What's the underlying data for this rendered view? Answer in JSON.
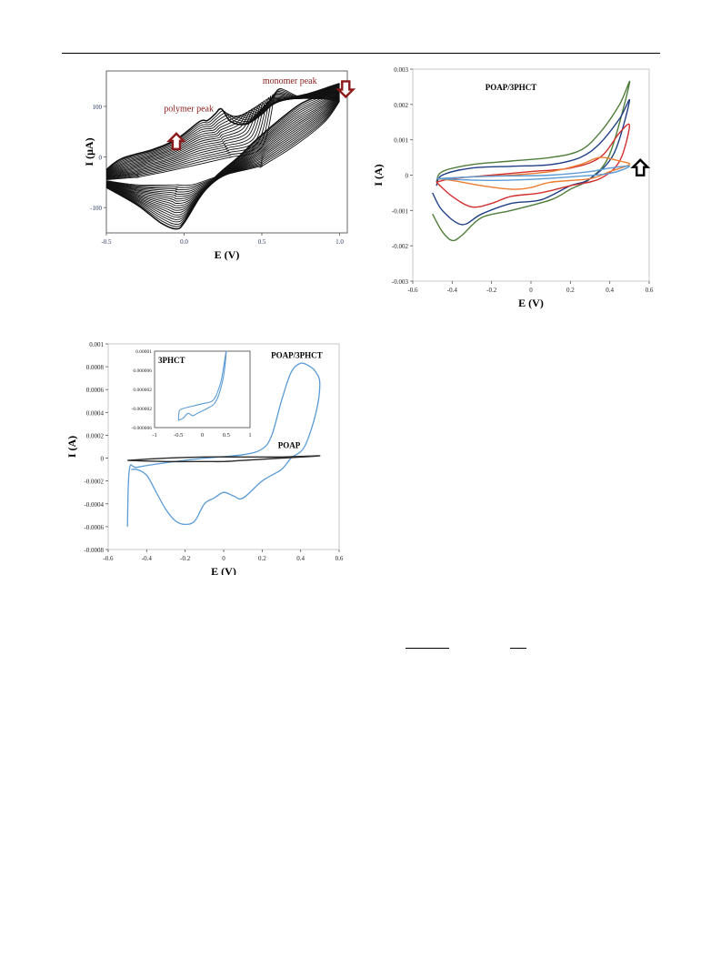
{
  "charts": [
    {
      "id": "fig1",
      "type": "line",
      "xlabel": "E (V)",
      "ylabel": "I (μA)",
      "xlim": [
        -0.5,
        1.05
      ],
      "ylim": [
        -150,
        170
      ],
      "xticks": [
        -0.5,
        0.0,
        0.5,
        1.0
      ],
      "xtick_labels": [
        "-0.5",
        "0.0",
        "0.5",
        "1.0"
      ],
      "yticks": [
        -100,
        0,
        100
      ],
      "ytick_labels": [
        "-100",
        "0",
        "100"
      ],
      "annotations": [
        {
          "text": "monomer peak",
          "x": 0.68,
          "y": 145,
          "color": "#8b1a1a"
        },
        {
          "text": "polymer peak",
          "x": 0.03,
          "y": 90,
          "color": "#8b1a1a"
        }
      ],
      "arrows": [
        {
          "direction": "up",
          "x": -0.05,
          "y": 30,
          "color": "#8b1a1a"
        },
        {
          "direction": "down",
          "x": 1.04,
          "y": 135,
          "color": "#8b1a1a"
        }
      ],
      "series_count": 20,
      "first_cycle": {
        "forward": [
          [
            -0.5,
            -45
          ],
          [
            -0.3,
            -40
          ],
          [
            -0.1,
            -28
          ],
          [
            0.1,
            -14
          ],
          [
            0.3,
            0
          ],
          [
            0.5,
            20
          ],
          [
            0.58,
            120
          ],
          [
            0.62,
            135
          ],
          [
            0.75,
            118
          ],
          [
            0.9,
            115
          ],
          [
            1.0,
            110
          ]
        ],
        "reverse": [
          [
            1.0,
            110
          ],
          [
            0.9,
            68
          ],
          [
            0.7,
            20
          ],
          [
            0.5,
            -18
          ],
          [
            0.4,
            -25
          ],
          [
            0.3,
            -32
          ],
          [
            0.2,
            -40
          ],
          [
            0.05,
            -55
          ],
          [
            -0.05,
            -55
          ],
          [
            -0.3,
            -55
          ],
          [
            -0.5,
            -47
          ]
        ]
      },
      "last_cycle": {
        "forward": [
          [
            -0.5,
            -25
          ],
          [
            -0.4,
            -3
          ],
          [
            -0.2,
            15
          ],
          [
            -0.05,
            35
          ],
          [
            0.1,
            70
          ],
          [
            0.15,
            72
          ],
          [
            0.2,
            85
          ],
          [
            0.24,
            95
          ],
          [
            0.3,
            70
          ],
          [
            0.4,
            65
          ],
          [
            0.5,
            85
          ],
          [
            0.6,
            110
          ],
          [
            0.8,
            125
          ],
          [
            0.95,
            140
          ],
          [
            1.0,
            145
          ]
        ],
        "reverse": [
          [
            1.0,
            145
          ],
          [
            0.9,
            125
          ],
          [
            0.75,
            105
          ],
          [
            0.6,
            70
          ],
          [
            0.45,
            30
          ],
          [
            0.35,
            0
          ],
          [
            0.2,
            -40
          ],
          [
            0.1,
            -80
          ],
          [
            0.0,
            -130
          ],
          [
            -0.05,
            -142
          ],
          [
            -0.15,
            -130
          ],
          [
            -0.3,
            -95
          ],
          [
            -0.5,
            -60
          ]
        ]
      }
    },
    {
      "id": "fig2",
      "type": "line",
      "title": "POAP/3PHCT",
      "xlabel": "E (V)",
      "ylabel": "I (A)",
      "xlim": [
        -0.6,
        0.6
      ],
      "ylim": [
        -0.003,
        0.003
      ],
      "xticks": [
        -0.6,
        -0.4,
        -0.2,
        0,
        0.2,
        0.4,
        0.6
      ],
      "xtick_labels": [
        "-0.6",
        "-0.4",
        "-0.2",
        "0",
        "0.2",
        "0.4",
        "0.6"
      ],
      "yticks": [
        -0.003,
        -0.002,
        -0.001,
        0,
        0.001,
        0.002,
        0.003
      ],
      "ytick_labels": [
        "-0.003",
        "-0.002",
        "-0.001",
        "0",
        "0.001",
        "0.002",
        "0.003"
      ],
      "arrows": [
        {
          "direction": "up",
          "x": 0.555,
          "y": 0.0002,
          "color": "#000000"
        }
      ],
      "series": [
        {
          "color": "#4e7d3a",
          "forward": [
            [
              -0.48,
              -0.0002
            ],
            [
              -0.45,
              0.0001
            ],
            [
              -0.3,
              0.0003
            ],
            [
              -0.1,
              0.0004
            ],
            [
              0.1,
              0.0005
            ],
            [
              0.25,
              0.0007
            ],
            [
              0.35,
              0.0012
            ],
            [
              0.45,
              0.002
            ],
            [
              0.5,
              0.0026
            ]
          ],
          "reverse": [
            [
              0.5,
              0.0026
            ],
            [
              0.4,
              0.0006
            ],
            [
              0.3,
              -0.0001
            ],
            [
              0.2,
              -0.0004
            ],
            [
              0.1,
              -0.0007
            ],
            [
              -0.1,
              -0.001
            ],
            [
              -0.25,
              -0.0012
            ],
            [
              -0.35,
              -0.0017
            ],
            [
              -0.4,
              -0.00185
            ],
            [
              -0.45,
              -0.0016
            ],
            [
              -0.5,
              -0.0011
            ]
          ]
        },
        {
          "color": "#1f3f86",
          "forward": [
            [
              -0.48,
              -0.0003
            ],
            [
              -0.45,
              0.0
            ],
            [
              -0.3,
              0.0002
            ],
            [
              -0.1,
              0.00025
            ],
            [
              0.1,
              0.0003
            ],
            [
              0.25,
              0.0005
            ],
            [
              0.35,
              0.0009
            ],
            [
              0.45,
              0.0016
            ],
            [
              0.5,
              0.0021
            ]
          ],
          "reverse": [
            [
              0.5,
              0.0021
            ],
            [
              0.42,
              0.0006
            ],
            [
              0.3,
              -0.0001
            ],
            [
              0.2,
              -0.0003
            ],
            [
              0.05,
              -0.0007
            ],
            [
              -0.1,
              -0.0008
            ],
            [
              -0.25,
              -0.0011
            ],
            [
              -0.35,
              -0.0014
            ],
            [
              -0.45,
              -0.001
            ],
            [
              -0.5,
              -0.0005
            ]
          ]
        },
        {
          "color": "#d32f2f",
          "forward": [
            [
              -0.48,
              -0.0002
            ],
            [
              -0.4,
              -0.0001
            ],
            [
              -0.2,
              0.0
            ],
            [
              0.0,
              0.0001
            ],
            [
              0.2,
              0.0002
            ],
            [
              0.35,
              0.0005
            ],
            [
              0.45,
              0.0012
            ],
            [
              0.5,
              0.0014
            ]
          ],
          "reverse": [
            [
              0.5,
              0.0014
            ],
            [
              0.45,
              0.0004
            ],
            [
              0.35,
              -0.0001
            ],
            [
              0.2,
              -0.0003
            ],
            [
              0.05,
              -0.0005
            ],
            [
              -0.1,
              -0.0006
            ],
            [
              -0.2,
              -0.0008
            ],
            [
              -0.3,
              -0.0009
            ],
            [
              -0.4,
              -0.0006
            ],
            [
              -0.48,
              -0.0002
            ]
          ]
        },
        {
          "color": "#ed7d31",
          "forward": [
            [
              -0.48,
              -0.0001
            ],
            [
              -0.3,
              -5e-05
            ],
            [
              -0.1,
              0.0
            ],
            [
              0.1,
              0.0001
            ],
            [
              0.25,
              0.0003
            ],
            [
              0.35,
              0.0005
            ],
            [
              0.45,
              0.0004
            ],
            [
              0.5,
              0.0003
            ]
          ],
          "reverse": [
            [
              0.5,
              0.0003
            ],
            [
              0.4,
              0.0001
            ],
            [
              0.3,
              -0.0001
            ],
            [
              0.1,
              -0.0002
            ],
            [
              0.0,
              -0.00035
            ],
            [
              -0.1,
              -0.0004
            ],
            [
              -0.25,
              -0.0003
            ],
            [
              -0.4,
              -0.00015
            ],
            [
              -0.48,
              -0.0001
            ]
          ]
        },
        {
          "color": "#5b9bd5",
          "forward": [
            [
              -0.48,
              -0.0001
            ],
            [
              -0.3,
              -5e-05
            ],
            [
              -0.1,
              -2e-05
            ],
            [
              0.1,
              0.0
            ],
            [
              0.3,
              0.0001
            ],
            [
              0.4,
              0.0002
            ],
            [
              0.5,
              0.00025
            ]
          ],
          "reverse": [
            [
              0.5,
              0.00025
            ],
            [
              0.4,
              5e-05
            ],
            [
              0.2,
              -5e-05
            ],
            [
              0.0,
              -0.00012
            ],
            [
              -0.2,
              -0.00015
            ],
            [
              -0.4,
              -0.00012
            ],
            [
              -0.48,
              -0.0001
            ]
          ]
        }
      ]
    },
    {
      "id": "fig3",
      "type": "line",
      "xlabel": "E (V)",
      "ylabel": "I (A)",
      "xlim": [
        -0.6,
        0.6
      ],
      "ylim": [
        -0.0008,
        0.001
      ],
      "xticks": [
        -0.6,
        -0.4,
        -0.2,
        0,
        0.2,
        0.4,
        0.6
      ],
      "xtick_labels": [
        "-0.6",
        "-0.4",
        "-0.2",
        "0",
        "0.2",
        "0.4",
        "0.6"
      ],
      "yticks": [
        -0.0008,
        -0.0006,
        -0.0004,
        -0.0002,
        0,
        0.0002,
        0.0004,
        0.0006,
        0.0008,
        0.001
      ],
      "ytick_labels": [
        "-0.0008",
        "-0.0006",
        "-0.0004",
        "-0.0002",
        "0",
        "0.0002",
        "0.0004",
        "0.0006",
        "0.0008",
        "0.001"
      ],
      "series": [
        {
          "name": "POAP/3PHCT",
          "color": "#5b9bd5",
          "forward": [
            [
              -0.5,
              -0.0006
            ],
            [
              -0.49,
              -0.0001
            ],
            [
              -0.45,
              -8e-05
            ],
            [
              -0.3,
              -4e-05
            ],
            [
              -0.1,
              0.0
            ],
            [
              0.1,
              3e-05
            ],
            [
              0.2,
              8e-05
            ],
            [
              0.25,
              0.0002
            ],
            [
              0.3,
              0.0005
            ],
            [
              0.35,
              0.00075
            ],
            [
              0.4,
              0.00083
            ],
            [
              0.45,
              0.0008
            ],
            [
              0.48,
              0.00075
            ],
            [
              0.5,
              0.00065
            ]
          ],
          "reverse": [
            [
              0.5,
              0.00065
            ],
            [
              0.48,
              0.0004
            ],
            [
              0.42,
              0.0001
            ],
            [
              0.35,
              0.0
            ],
            [
              0.3,
              -0.0001
            ],
            [
              0.2,
              -0.0002
            ],
            [
              0.1,
              -0.00035
            ],
            [
              0.05,
              -0.00033
            ],
            [
              0.0,
              -0.0003
            ],
            [
              -0.05,
              -0.00035
            ],
            [
              -0.1,
              -0.0004
            ],
            [
              -0.15,
              -0.00055
            ],
            [
              -0.2,
              -0.00058
            ],
            [
              -0.25,
              -0.00055
            ],
            [
              -0.3,
              -0.00045
            ],
            [
              -0.35,
              -0.0003
            ],
            [
              -0.4,
              -0.00015
            ],
            [
              -0.45,
              -0.0001
            ],
            [
              -0.48,
              -0.0001
            ]
          ]
        },
        {
          "name": "POAP",
          "color": "#2b2b2b",
          "forward": [
            [
              -0.5,
              -2e-05
            ],
            [
              -0.3,
              0.0
            ],
            [
              -0.1,
              1e-05
            ],
            [
              0.1,
              1e-05
            ],
            [
              0.3,
              1e-05
            ],
            [
              0.5,
              2e-05
            ]
          ],
          "reverse": [
            [
              0.5,
              2e-05
            ],
            [
              0.3,
              0.0
            ],
            [
              0.1,
              -2e-05
            ],
            [
              0.0,
              -3e-05
            ],
            [
              -0.1,
              -3e-05
            ],
            [
              -0.3,
              -3e-05
            ],
            [
              -0.5,
              -2e-05
            ]
          ]
        }
      ],
      "labels": [
        {
          "text": "POAP/3PHCT",
          "x": 0.38,
          "y": 0.00083
        },
        {
          "text": "POAP",
          "x": 0.34,
          "y": 4e-05
        }
      ],
      "inset": {
        "title": "3PHCT",
        "xlim": [
          -1,
          1
        ],
        "ylim": [
          -6e-06,
          1e-05
        ],
        "xticks": [
          -1,
          -0.5,
          0,
          0.5,
          1
        ],
        "xtick_labels": [
          "-1",
          "-0.5",
          "0",
          "0.5",
          "1"
        ],
        "yticks": [
          -6e-06,
          -2e-06,
          2e-06,
          6e-06,
          1e-05
        ],
        "ytick_labels": [
          "-0.000006",
          "-0.000002",
          "0.000002",
          "0.000006",
          "0.00001"
        ],
        "color": "#5b9bd5",
        "forward": [
          [
            -0.5,
            -4.5e-06
          ],
          [
            -0.48,
            -2.5e-06
          ],
          [
            -0.4,
            -2e-06
          ],
          [
            -0.2,
            -1.5e-06
          ],
          [
            0.0,
            -1e-06
          ],
          [
            0.2,
            -5e-07
          ],
          [
            0.3,
            1e-06
          ],
          [
            0.4,
            4e-06
          ],
          [
            0.5,
            1e-05
          ]
        ],
        "reverse": [
          [
            0.5,
            1e-05
          ],
          [
            0.45,
            5e-06
          ],
          [
            0.35,
            1e-06
          ],
          [
            0.25,
            -1e-06
          ],
          [
            0.1,
            -2e-06
          ],
          [
            0.0,
            -2.5e-06
          ],
          [
            -0.1,
            -3e-06
          ],
          [
            -0.2,
            -3.5e-06
          ],
          [
            -0.3,
            -3e-06
          ],
          [
            -0.4,
            -4e-06
          ],
          [
            -0.5,
            -4.5e-06
          ]
        ]
      }
    }
  ]
}
